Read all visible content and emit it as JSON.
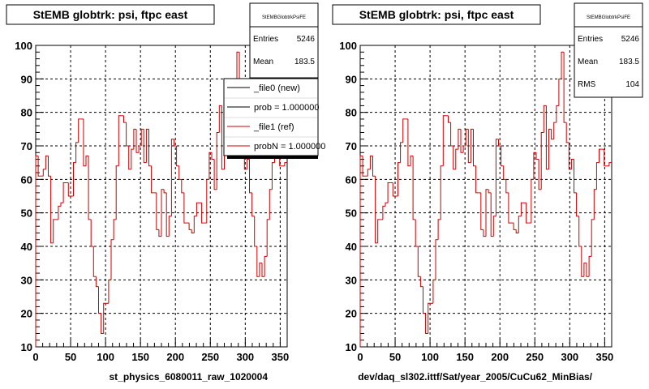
{
  "colors": {
    "frame": "#000000",
    "grid": "#000000",
    "histogram": "#cc0000",
    "legend_new": "#000000",
    "legend_ref": "#cc0000",
    "shadow": "#000000",
    "background": "#ffffff"
  },
  "charts": [
    {
      "title": "StEMB globtrk: psi, ftpc east",
      "xlabel": "st_physics_6080011_raw_1020004",
      "stats": {
        "name": "StEMBGlobtrkPsiFE",
        "rows": [
          {
            "label": "Entries",
            "value": "5246"
          },
          {
            "label": "Mean",
            "value": "183.5"
          }
        ]
      },
      "legend": {
        "entries": [
          {
            "label": "_file0 (new)",
            "color": "#000000"
          },
          {
            "label": "prob = 1.000000",
            "color": "#000000"
          },
          {
            "label": "_file1 (ref)",
            "color": "#cc0000"
          },
          {
            "label": "probN = 1.000000",
            "color": "#cc0000"
          }
        ]
      }
    },
    {
      "title": "StEMB globtrk: psi, ftpc east",
      "xlabel": "dev/daq_sl302.ittf/Sat/year_2005/CuCu62_MinBias/",
      "stats": {
        "name": "StEMBGlobtrkPsiFE",
        "rows": [
          {
            "label": "Entries",
            "value": "5246"
          },
          {
            "label": "Mean",
            "value": "183.5"
          },
          {
            "label": "RMS",
            "value": "104"
          }
        ]
      }
    }
  ],
  "chart_data": [
    {
      "type": "histogram",
      "title": "StEMB globtrk: psi, ftpc east",
      "xlabel": "st_physics_6080011_raw_1020004",
      "xlim": [
        0,
        360
      ],
      "ylim": [
        10,
        100
      ],
      "xticks": [
        0,
        50,
        100,
        150,
        200,
        250,
        300,
        350
      ],
      "yticks": [
        10,
        20,
        30,
        40,
        50,
        60,
        70,
        80,
        90,
        100
      ],
      "grid": true,
      "bin_width": 3.6,
      "values": [
        67,
        61,
        61,
        63,
        67,
        61,
        41,
        48,
        48,
        52,
        53,
        59,
        59,
        55,
        55,
        65,
        71,
        78,
        78,
        64,
        67,
        48,
        40,
        31,
        28,
        20,
        14,
        23,
        23,
        30,
        42,
        48,
        64,
        79,
        79,
        77,
        70,
        63,
        69,
        75,
        68,
        70,
        75,
        65,
        75,
        64,
        56,
        56,
        45,
        43,
        57,
        56,
        43,
        49,
        72,
        70,
        64,
        60,
        56,
        47,
        47,
        45,
        44,
        49,
        53,
        53,
        47,
        47,
        60,
        68,
        66,
        57,
        74,
        82,
        63,
        75,
        72,
        77,
        82,
        90,
        98,
        77,
        71,
        63,
        66,
        56,
        49,
        40,
        31,
        35,
        31,
        37,
        48,
        57,
        65,
        69,
        69,
        64,
        64,
        65
      ],
      "series": [
        {
          "name": "_file0 (new)",
          "color": "#000000"
        },
        {
          "name": "_file1 (ref)",
          "color": "#cc0000"
        }
      ]
    },
    {
      "type": "histogram",
      "title": "StEMB globtrk: psi, ftpc east",
      "xlabel": "dev/daq_sl302.ittf/Sat/year_2005/CuCu62_MinBias/",
      "xlim": [
        0,
        360
      ],
      "ylim": [
        10,
        100
      ],
      "xticks": [
        0,
        50,
        100,
        150,
        200,
        250,
        300,
        350
      ],
      "yticks": [
        10,
        20,
        30,
        40,
        50,
        60,
        70,
        80,
        90,
        100
      ],
      "grid": true,
      "bin_width": 3.6,
      "values": [
        67,
        61,
        61,
        63,
        67,
        61,
        41,
        48,
        48,
        52,
        53,
        59,
        59,
        55,
        55,
        65,
        71,
        78,
        78,
        64,
        67,
        48,
        40,
        31,
        28,
        20,
        14,
        23,
        23,
        30,
        42,
        48,
        64,
        79,
        79,
        77,
        70,
        63,
        69,
        75,
        68,
        70,
        75,
        65,
        75,
        64,
        56,
        56,
        45,
        43,
        57,
        56,
        43,
        49,
        72,
        70,
        64,
        60,
        56,
        47,
        47,
        45,
        44,
        49,
        53,
        53,
        47,
        47,
        60,
        68,
        66,
        57,
        74,
        82,
        63,
        75,
        72,
        77,
        82,
        90,
        98,
        77,
        71,
        63,
        66,
        56,
        49,
        40,
        31,
        35,
        31,
        37,
        48,
        57,
        65,
        69,
        69,
        64,
        64,
        65
      ]
    }
  ]
}
